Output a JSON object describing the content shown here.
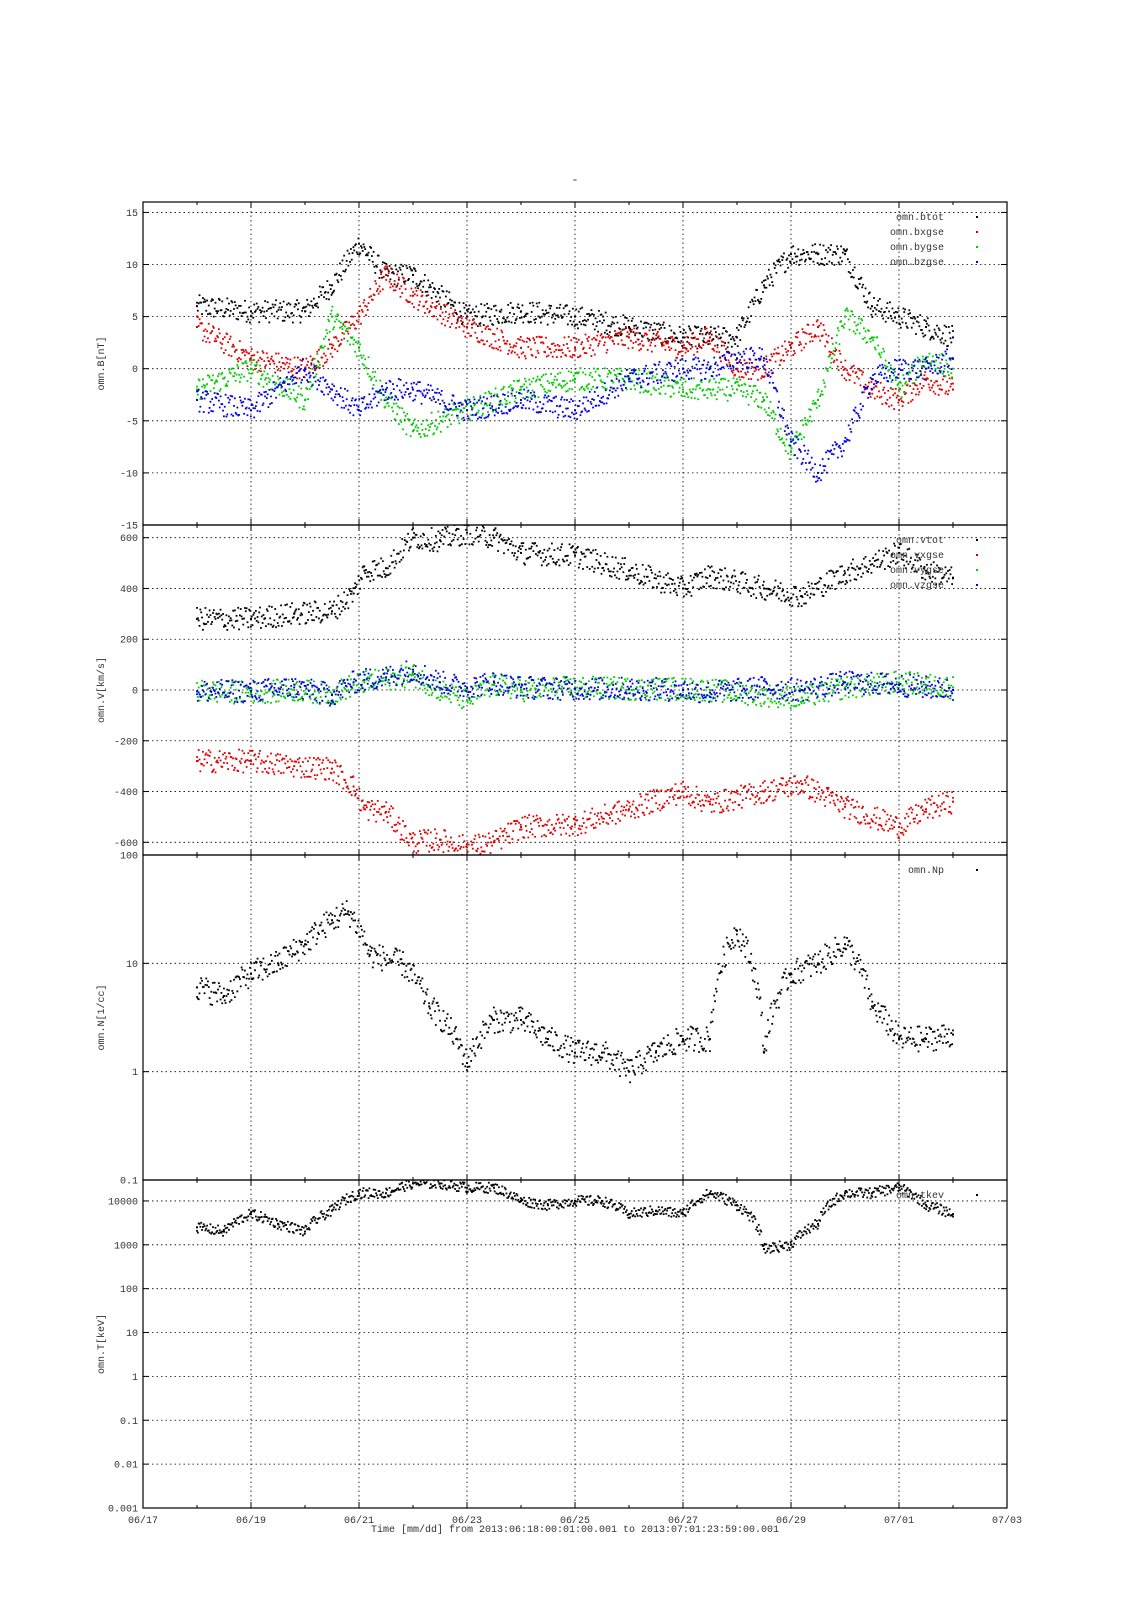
{
  "figure": {
    "title": "-",
    "xlabel": "Time [mm/dd]  from 2013:06:18:00:01:00.001  to  2013:07:01:23:59:00.001"
  },
  "x_axis": {
    "range_days": [
      0,
      16
    ],
    "ticks": [
      {
        "day": 0,
        "label": "06/17"
      },
      {
        "day": 2,
        "label": "06/19"
      },
      {
        "day": 4,
        "label": "06/21"
      },
      {
        "day": 6,
        "label": "06/23"
      },
      {
        "day": 8,
        "label": "06/25"
      },
      {
        "day": 10,
        "label": "06/27"
      },
      {
        "day": 12,
        "label": "06/29"
      },
      {
        "day": 14,
        "label": "07/01"
      },
      {
        "day": 16,
        "label": "07/03"
      }
    ]
  },
  "colors": {
    "black": "#000000",
    "red": "#dd0000",
    "green": "#00cc00",
    "blue": "#0000dd"
  },
  "chart_data": [
    {
      "type": "scatter",
      "ylabel": "omn.B[nT]",
      "ylim": [
        -15,
        16
      ],
      "yscale": "linear",
      "yticks": [
        -15,
        -10,
        -5,
        0,
        5,
        10,
        15
      ],
      "legend_position": "top-right",
      "x": [
        1.0,
        2.0,
        3.0,
        3.5,
        4.0,
        4.5,
        5.0,
        6.0,
        7.0,
        8.0,
        9.0,
        10.0,
        10.5,
        11.0,
        11.5,
        12.0,
        12.5,
        13.0,
        13.5,
        14.0,
        14.5,
        15.0
      ],
      "series": [
        {
          "name": "omn.btot",
          "color": "black",
          "values": [
            6,
            5.5,
            5.5,
            8,
            12,
            9,
            9,
            5,
            5.5,
            5,
            4,
            3,
            3,
            3,
            8,
            11,
            11,
            11,
            6,
            5,
            4,
            3
          ]
        },
        {
          "name": "omn.bxgse",
          "color": "red",
          "values": [
            4,
            1,
            0,
            2,
            5,
            9,
            7,
            4,
            2,
            2,
            3,
            2,
            3,
            0,
            0,
            2,
            4,
            0,
            -2,
            -3,
            -1,
            -2
          ]
        },
        {
          "name": "omn.bygse",
          "color": "green",
          "values": [
            -2,
            0,
            -3,
            5,
            2,
            -3,
            -6,
            -4,
            -2,
            -1,
            -1,
            -2,
            -2,
            -2,
            -3,
            -8,
            -3,
            5,
            3,
            -2,
            1,
            0
          ]
        },
        {
          "name": "omn.bzgse",
          "color": "blue",
          "values": [
            -3,
            -4,
            0,
            -2,
            -4,
            -2,
            -2,
            -4,
            -3,
            -4,
            -1,
            0,
            0,
            1,
            1,
            -7,
            -10,
            -7,
            -1,
            0,
            0,
            1
          ]
        }
      ]
    },
    {
      "type": "scatter",
      "ylabel": "omn.V[km/s]",
      "ylim": [
        -650,
        650
      ],
      "yscale": "linear",
      "yticks": [
        -600,
        -400,
        -200,
        0,
        200,
        400,
        600
      ],
      "legend_position": "top-right",
      "x": [
        1.0,
        2.0,
        2.8,
        3.5,
        3.9,
        4.1,
        4.5,
        5.0,
        5.5,
        6.0,
        6.5,
        7.0,
        8.0,
        9.0,
        10.0,
        10.5,
        11.5,
        12.2,
        13.0,
        14.0,
        14.5,
        15.0
      ],
      "series": [
        {
          "name": "omn.vtot",
          "color": "black",
          "values": [
            280,
            280,
            300,
            310,
            380,
            470,
            480,
            600,
            590,
            620,
            600,
            540,
            530,
            470,
            400,
            450,
            400,
            370,
            460,
            540,
            470,
            440
          ]
        },
        {
          "name": "omn.vxgse",
          "color": "red",
          "values": [
            -280,
            -280,
            -300,
            -310,
            -380,
            -470,
            -480,
            -600,
            -590,
            -620,
            -600,
            -540,
            -530,
            -470,
            -400,
            -450,
            -400,
            -370,
            -460,
            -540,
            -470,
            -440
          ]
        },
        {
          "name": "omn.vygse",
          "color": "green",
          "values": [
            -5,
            -10,
            0,
            -15,
            20,
            30,
            40,
            60,
            0,
            -40,
            20,
            0,
            10,
            5,
            5,
            0,
            -20,
            -30,
            10,
            30,
            20,
            10
          ]
        },
        {
          "name": "omn.vzgse",
          "color": "blue",
          "values": [
            -5,
            -5,
            10,
            -20,
            30,
            40,
            50,
            80,
            30,
            10,
            30,
            10,
            5,
            5,
            0,
            -10,
            10,
            0,
            30,
            20,
            10,
            0
          ]
        }
      ]
    },
    {
      "type": "scatter",
      "ylabel": "omn.N[1/cc]",
      "ylim": [
        0.1,
        100
      ],
      "yscale": "log",
      "yticks": [
        0.1,
        1,
        10,
        100
      ],
      "legend_position": "top-right",
      "x": [
        1.0,
        1.5,
        2.0,
        2.5,
        3.0,
        3.5,
        3.8,
        4.2,
        4.8,
        5.3,
        5.8,
        6.0,
        6.5,
        7.0,
        7.5,
        8.0,
        8.5,
        9.0,
        9.5,
        10.0,
        10.5,
        11.0,
        11.5,
        12.0,
        12.5,
        13.0,
        13.5,
        14.0,
        14.5,
        15.0
      ],
      "series": [
        {
          "name": "omn.Np",
          "color": "black",
          "values": [
            6,
            5,
            8,
            10,
            15,
            25,
            30,
            12,
            10,
            4,
            2,
            1.2,
            3,
            3,
            2,
            1.5,
            1.5,
            1,
            1.5,
            2,
            2,
            20,
            1.5,
            8,
            10,
            15,
            4,
            2,
            2,
            2.2
          ]
        }
      ]
    },
    {
      "type": "scatter",
      "ylabel": "omn.T[keV]",
      "ylim": [
        0.001,
        30000
      ],
      "yscale": "log",
      "yticks": [
        0.001,
        0.01,
        0.1,
        1,
        10,
        100,
        1000,
        10000
      ],
      "legend_position": "top-right",
      "x": [
        1.0,
        1.5,
        2.0,
        2.5,
        3.0,
        3.5,
        4.0,
        4.5,
        5.0,
        5.5,
        6.0,
        6.5,
        7.0,
        7.5,
        8.0,
        8.5,
        9.0,
        9.5,
        10.0,
        10.5,
        11.0,
        11.5,
        12.0,
        12.5,
        13.0,
        13.5,
        14.0,
        14.5,
        15.0
      ],
      "series": [
        {
          "name": "omn.tkev",
          "color": "black",
          "values": [
            2500,
            2000,
            5000,
            3000,
            2000,
            6000,
            15000,
            15000,
            25000,
            25000,
            20000,
            20000,
            10000,
            8000,
            10000,
            10000,
            5000,
            6000,
            5000,
            15000,
            8000,
            800,
            1000,
            3000,
            15000,
            15000,
            20000,
            8000,
            5000
          ]
        }
      ]
    }
  ]
}
